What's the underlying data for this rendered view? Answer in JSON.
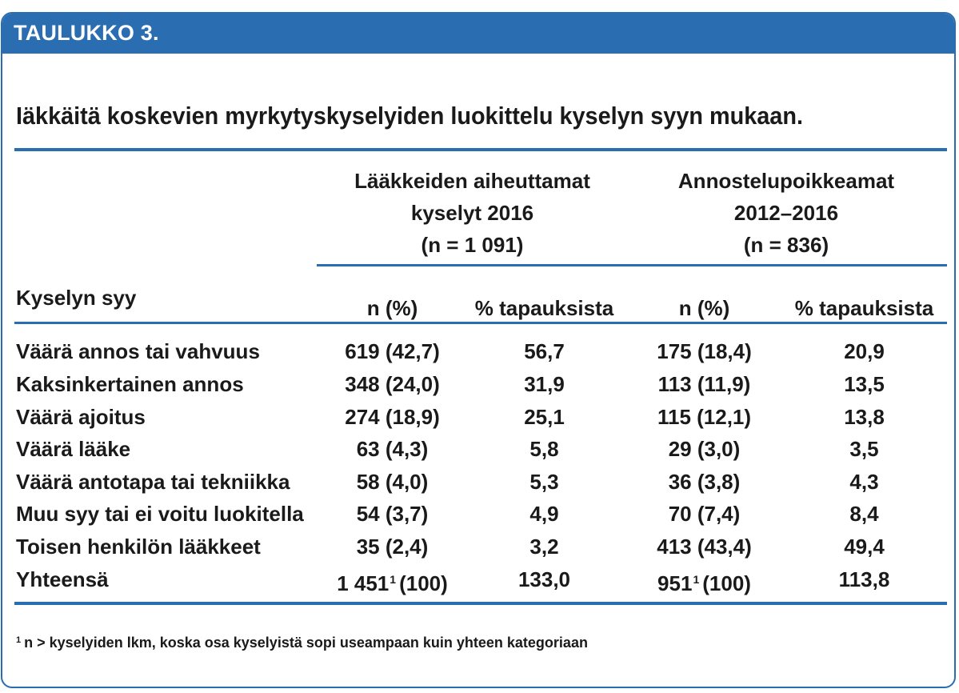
{
  "header": {
    "label": "TAULUKKO 3."
  },
  "title": "Iäkkäitä koskevien myrkytyskyselyiden luokittelu kyselyn syyn mukaan.",
  "table": {
    "row_header": "Kyselyn syy",
    "group1": {
      "line1": "Lääkkeiden aiheuttamat",
      "line2": "kyselyt 2016",
      "line3": "(n = 1 091)"
    },
    "group2": {
      "line1": "Annostelupoikkeamat",
      "line2": "2012–2016",
      "line3": "(n = 836)"
    },
    "subheaders": [
      "n (%)",
      "% tapauksista",
      "n (%)",
      "% tapauksista"
    ],
    "rows": [
      {
        "label": "Väärä annos tai vahvuus",
        "c1": "619 (42,7)",
        "c2": "56,7",
        "c3": "175 (18,4)",
        "c4": "20,9"
      },
      {
        "label": "Kaksinkertainen annos",
        "c1": "348 (24,0)",
        "c2": "31,9",
        "c3": "113 (11,9)",
        "c4": "13,5"
      },
      {
        "label": "Väärä ajoitus",
        "c1": "274 (18,9)",
        "c2": "25,1",
        "c3": "115 (12,1)",
        "c4": "13,8"
      },
      {
        "label": "Väärä lääke",
        "c1": "63 (4,3)",
        "c2": "5,8",
        "c3": "29 (3,0)",
        "c4": "3,5"
      },
      {
        "label": "Väärä antotapa tai tekniikka",
        "c1": "58 (4,0)",
        "c2": "5,3",
        "c3": "36 (3,8)",
        "c4": "4,3"
      },
      {
        "label": "Muu syy tai ei voitu luokitella",
        "c1": "54 (3,7)",
        "c2": "4,9",
        "c3": "70 (7,4)",
        "c4": "8,4"
      },
      {
        "label": "Toisen henkilön lääkkeet",
        "c1": "35 (2,4)",
        "c2": "3,2",
        "c3": "413 (43,4)",
        "c4": "49,4"
      }
    ],
    "total": {
      "label": "Yhteensä",
      "c1_value": "1 451",
      "c1_sup": "1",
      "c1_pct": "(100)",
      "c2": "133,0",
      "c3_value": "951",
      "c3_sup": "1",
      "c3_pct": "(100)",
      "c4": "113,8"
    }
  },
  "footnote": {
    "marker": "1",
    "text": "n > kyselyiden lkm, koska osa kyselyistä sopi useampaan kuin yhteen kategoriaan"
  },
  "colors": {
    "accent": "#2a6db0",
    "text": "#1a1a1a",
    "header_text": "#ffffff"
  }
}
